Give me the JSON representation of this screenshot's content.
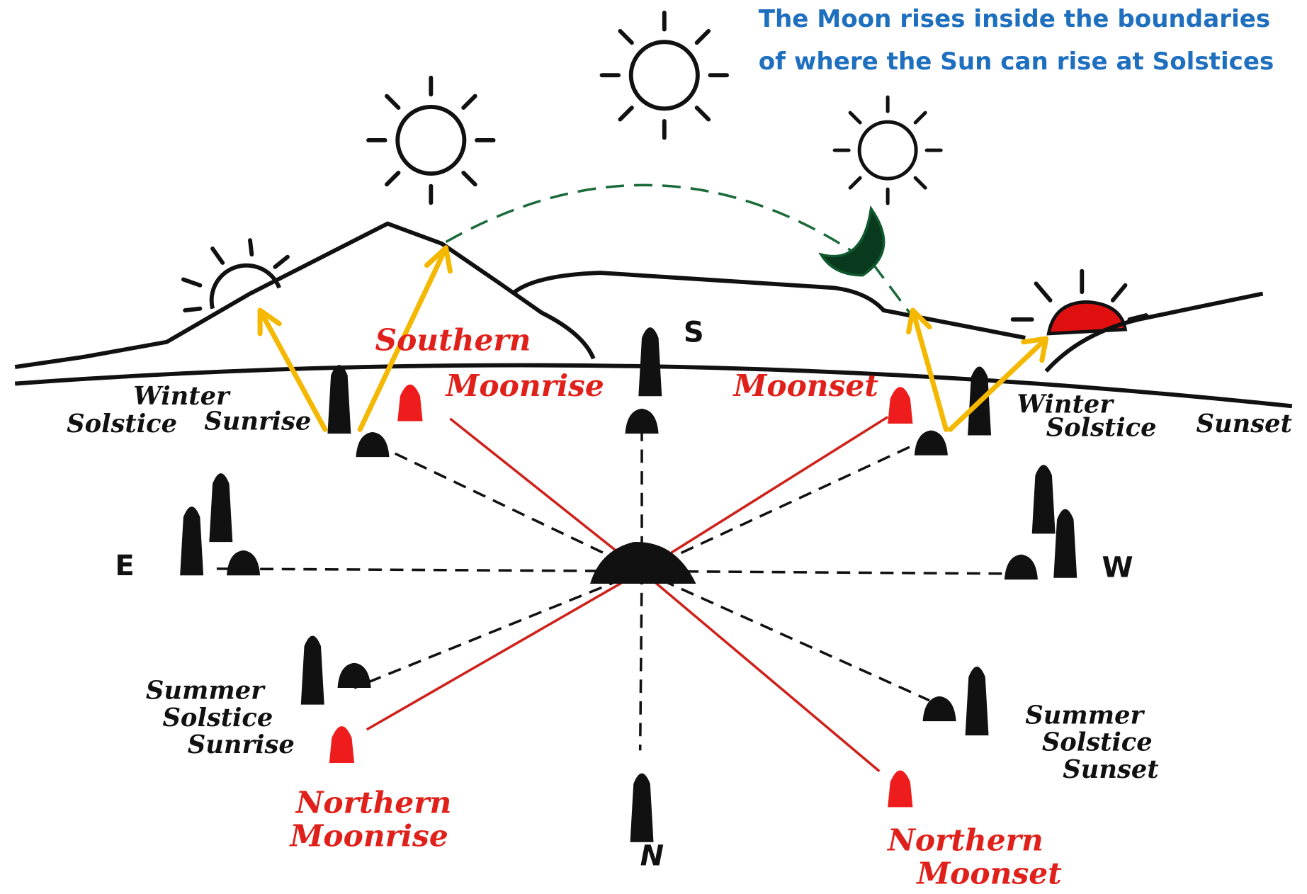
{
  "title": [
    "The Moon rises inside the boundaries",
    "of where the Sun can rise at Solstices"
  ],
  "labels": {
    "winter_solstice_sunrise": [
      "Winter",
      "Solstice",
      "Sunrise"
    ],
    "southern_moonrise": [
      "Southern",
      "Moonrise"
    ],
    "moonset": [
      "Moonset"
    ],
    "winter_solstice_sunset": [
      "Winter",
      "Solstice",
      "Sunset"
    ],
    "summer_solstice_sunrise": [
      "Summer",
      "Solstice",
      "Sunrise"
    ],
    "northern_moonrise": [
      "Northern",
      "Moonrise"
    ],
    "northern_moonset": [
      "Northern",
      "Moonset"
    ],
    "summer_solstice_sunset": [
      "Summer",
      "Solstice",
      "Sunset"
    ]
  },
  "compass": {
    "south": "S",
    "east": "E",
    "west": "W",
    "north": "N"
  }
}
